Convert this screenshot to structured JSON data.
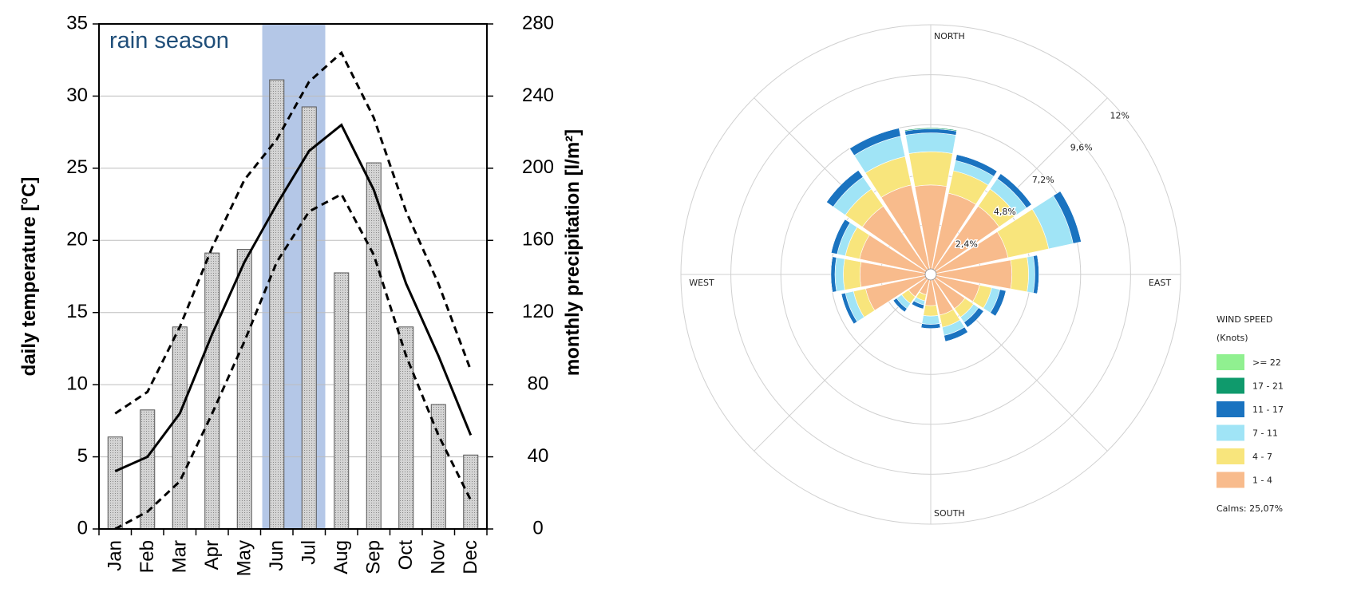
{
  "chart_data": [
    {
      "type": "bar",
      "categories": [
        "Jan",
        "Feb",
        "Mar",
        "Apr",
        "May",
        "Jun",
        "Jul",
        "Aug",
        "Sep",
        "Oct",
        "Nov",
        "Dec"
      ],
      "series": [
        {
          "type": "bar",
          "axis": "y2",
          "color": "#c8c8c8",
          "values": [
            51,
            66,
            112,
            153,
            155,
            249,
            234,
            142,
            203,
            112,
            69,
            41
          ]
        },
        {
          "type": "line",
          "color": "#000000",
          "values": [
            4,
            5,
            8,
            13.5,
            18.5,
            22.5,
            26.2,
            28,
            23.5,
            17,
            12,
            6.5
          ]
        },
        {
          "type": "line",
          "dashed": true,
          "color": "#000000",
          "values": [
            8,
            9.5,
            14,
            19.5,
            24.2,
            27,
            31,
            33,
            28.5,
            22,
            17,
            11
          ]
        },
        {
          "type": "line",
          "dashed": true,
          "color": "#000000",
          "values": [
            0,
            1.2,
            3.3,
            8,
            13,
            18.5,
            22,
            23.2,
            19,
            12,
            6.5,
            2
          ]
        }
      ],
      "ylabel": "daily temperature [°C]",
      "y2label": "monthly precipitation [l/m²]",
      "ylim": [
        0,
        35
      ],
      "yticks": [
        0,
        5,
        10,
        15,
        20,
        25,
        30,
        35
      ],
      "y2lim": [
        0,
        280
      ],
      "y2ticks": [
        0,
        40,
        80,
        120,
        160,
        200,
        240,
        280
      ],
      "grid": true,
      "annotation": {
        "text": "rain season",
        "span": [
          "Jun",
          "Jul"
        ],
        "color": "#b4c7e7"
      }
    },
    {
      "type": "windrose",
      "categories": [
        "NORTH",
        null,
        null,
        null,
        "EAST",
        null,
        null,
        null,
        "SOUTH",
        null,
        null,
        null,
        "WEST",
        null,
        null,
        null
      ],
      "series": [
        {
          "name": ">= 22",
          "color": "#90f090",
          "values": [
            0,
            0,
            0,
            0,
            0,
            0,
            0,
            0,
            0,
            0,
            0,
            0,
            0,
            0,
            0,
            0
          ]
        },
        {
          "name": "17 - 21",
          "color": "#0f9a6c",
          "values": [
            0.05,
            0,
            0,
            0,
            0,
            0,
            0,
            0,
            0,
            0,
            0,
            0,
            0,
            0,
            0,
            0
          ]
        },
        {
          "name": "11 - 17",
          "color": "#1a73c0",
          "values": [
            0.2,
            0.3,
            0.3,
            0.4,
            0.2,
            0.3,
            0.3,
            0.3,
            0.2,
            0.2,
            0.2,
            0.2,
            0.2,
            0.3,
            0.4,
            0.4
          ]
        },
        {
          "name": "7 - 11",
          "color": "#a0e4f6",
          "values": [
            0.9,
            0.5,
            0.6,
            1.2,
            0.3,
            0.4,
            0.3,
            0.4,
            0.4,
            0.2,
            0.3,
            0.4,
            0.4,
            0.4,
            0.7,
            1.0
          ]
        },
        {
          "name": "4 - 7",
          "color": "#f8e57c",
          "values": [
            1.6,
            1.1,
            1.0,
            2.0,
            0.8,
            0.6,
            0.5,
            0.6,
            0.5,
            0.3,
            0.4,
            0.6,
            0.8,
            0.7,
            1.0,
            1.4
          ]
        },
        {
          "name": "1 - 4",
          "color": "#f8bb8c",
          "values": [
            4.3,
            4.0,
            4.0,
            3.8,
            3.9,
            2.4,
            2.0,
            2.0,
            1.5,
            1.0,
            1.3,
            3.2,
            3.4,
            3.5,
            4.0,
            4.4
          ]
        }
      ],
      "rlim": [
        0,
        12
      ],
      "rticks": [
        {
          "value": 2.4,
          "label": "2,4%"
        },
        {
          "value": 4.8,
          "label": "4,8%"
        },
        {
          "value": 7.2,
          "label": "7,2%"
        },
        {
          "value": 9.6,
          "label": "9,6%"
        },
        {
          "value": 12,
          "label": "12%"
        }
      ],
      "grid": true,
      "legend": "right",
      "legend_title": "WIND SPEED",
      "legend_subtitle": "(Knots)",
      "note": "Calms: 25,07%"
    }
  ]
}
